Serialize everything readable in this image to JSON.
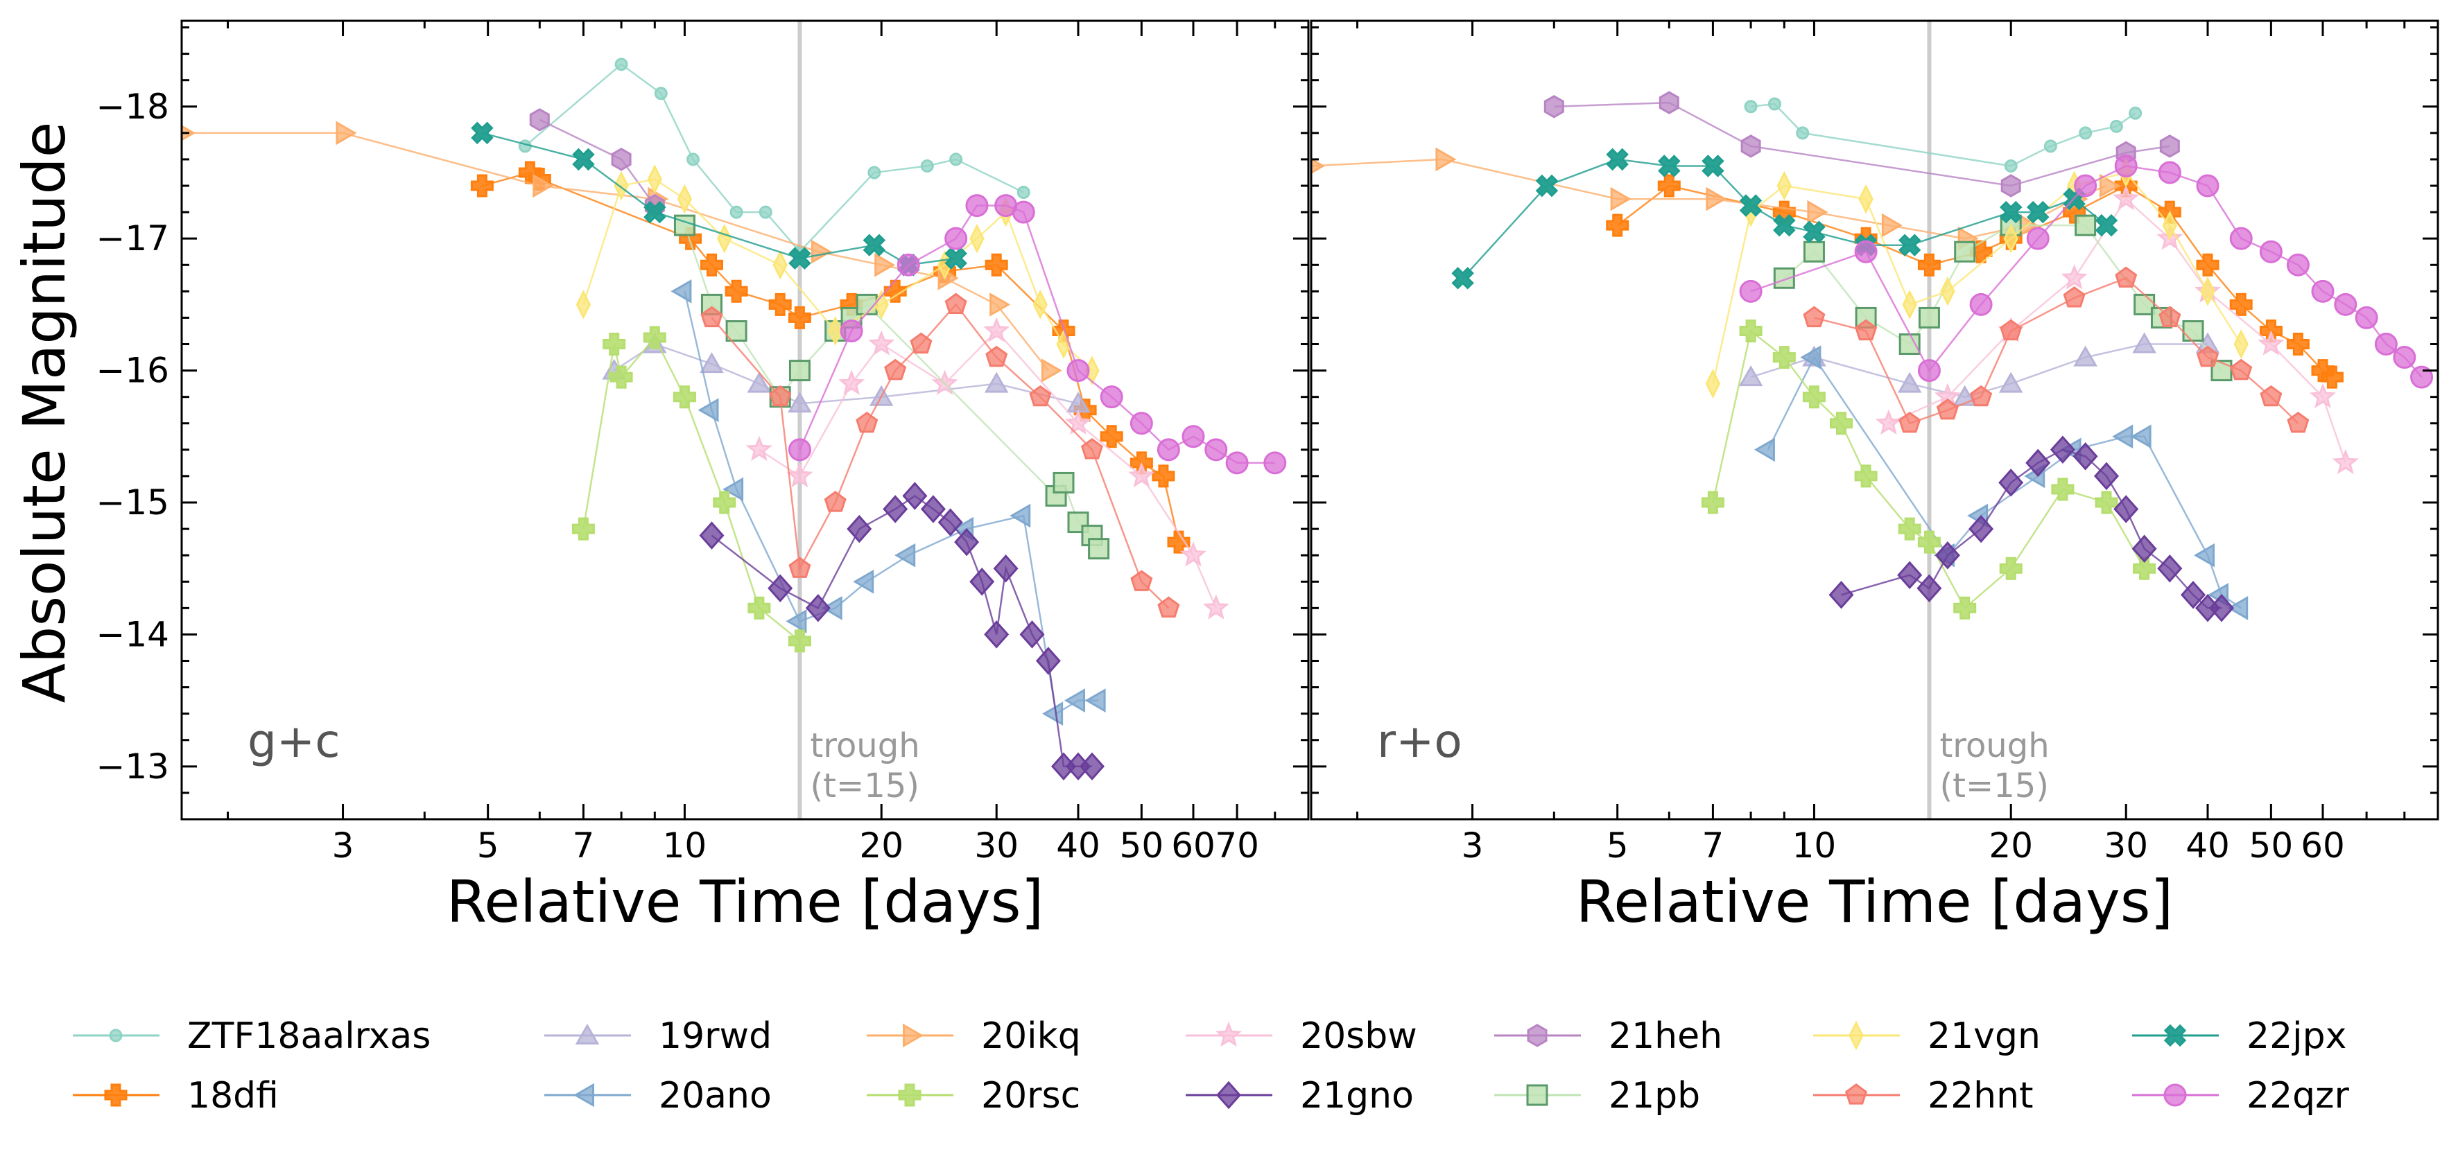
{
  "chart_data": {
    "type": "scatter",
    "figure_ylabel": "Absolute Magnitude",
    "xscale": "log",
    "y_inverted": true,
    "ylim": [
      -12.6,
      -18.65
    ],
    "yticks": [
      -18,
      -17,
      -16,
      -15,
      -14,
      -13
    ],
    "grid": false,
    "legend_placement": "bottom, 7 columns",
    "trough": {
      "x": 15,
      "label_line1": "trough",
      "label_line2": "(t=15)"
    },
    "panels": [
      {
        "label": "g+c",
        "xlabel": "Relative Time [days]",
        "xlim": [
          1.7,
          90
        ],
        "xticks": [
          3,
          5,
          7,
          10,
          20,
          30,
          40,
          50,
          60,
          70
        ],
        "series": [
          {
            "name": "ZTF18aalrxas",
            "x": [
              5.7,
              8.0,
              9.2,
              10.3,
              12.0,
              13.3,
              15.0,
              19.5,
              23.5,
              26.0,
              33.0
            ],
            "y": [
              -17.7,
              -18.32,
              -18.1,
              -17.6,
              -17.2,
              -17.2,
              -16.9,
              -17.5,
              -17.55,
              -17.6,
              -17.35
            ]
          },
          {
            "name": "18dfi",
            "x": [
              4.9,
              5.8,
              6.0,
              10.2,
              11.0,
              12.0,
              14.0,
              15.0,
              18.0,
              21.0,
              25.0,
              30.0,
              38.0,
              41.0,
              45.0,
              50.0,
              54.0,
              57.0
            ],
            "y": [
              -17.4,
              -17.5,
              -17.45,
              -17.0,
              -16.8,
              -16.6,
              -16.5,
              -16.4,
              -16.5,
              -16.6,
              -16.75,
              -16.8,
              -16.3,
              -15.7,
              -15.5,
              -15.3,
              -15.2,
              -14.7
            ]
          },
          {
            "name": "19rwd",
            "x": [
              7.8,
              9.0,
              11.0,
              13.0,
              15.0,
              20.0,
              30.0,
              40.0
            ],
            "y": [
              -16.0,
              -16.2,
              -16.05,
              -15.9,
              -15.75,
              -15.8,
              -15.9,
              -15.75
            ]
          },
          {
            "name": "20ano",
            "x": [
              10.0,
              11.0,
              12.0,
              15.0,
              17.0,
              19.0,
              22.0,
              27.0,
              33.0,
              37.0,
              40.0,
              43.0
            ],
            "y": [
              -16.6,
              -15.7,
              -15.1,
              -14.1,
              -14.2,
              -14.4,
              -14.6,
              -14.8,
              -14.9,
              -13.4,
              -13.5,
              -13.5
            ]
          },
          {
            "name": "20ikq",
            "x": [
              1.7,
              3.0,
              6.0,
              9.0,
              16.0,
              20.0,
              25.0,
              30.0,
              36.0
            ],
            "y": [
              -17.8,
              -17.8,
              -17.4,
              -17.3,
              -16.9,
              -16.8,
              -16.7,
              -16.5,
              -16.0
            ]
          },
          {
            "name": "20rsc",
            "x": [
              7.0,
              7.8,
              8.0,
              9.0,
              10.0,
              11.5,
              13.0,
              15.0
            ],
            "y": [
              -14.8,
              -16.2,
              -15.95,
              -16.25,
              -15.8,
              -15.0,
              -14.2,
              -13.95
            ]
          },
          {
            "name": "20sbw",
            "x": [
              13.0,
              15.0,
              18.0,
              20.0,
              25.0,
              30.0,
              40.0,
              50.0,
              60.0,
              65.0
            ],
            "y": [
              -15.4,
              -15.2,
              -15.9,
              -16.2,
              -15.9,
              -16.3,
              -15.6,
              -15.2,
              -14.6,
              -14.2
            ]
          },
          {
            "name": "21gno",
            "x": [
              11.0,
              14.0,
              16.0,
              18.5,
              21.0,
              22.5,
              24.0,
              25.5,
              27.0,
              28.5,
              30.0,
              31.0,
              34.0,
              36.0,
              38.0,
              40.0,
              42.0
            ],
            "y": [
              -14.75,
              -14.35,
              -14.2,
              -14.8,
              -14.95,
              -15.05,
              -14.95,
              -14.85,
              -14.7,
              -14.4,
              -14.0,
              -14.5,
              -14.0,
              -13.8,
              -13.0,
              -13.0,
              -13.0
            ]
          },
          {
            "name": "21heh",
            "x": [
              6.0,
              8.0,
              9.0
            ],
            "y": [
              -17.9,
              -17.6,
              -17.25
            ]
          },
          {
            "name": "21pb",
            "x": [
              10.0,
              11.0,
              12.0,
              14.0,
              15.0,
              17.0,
              18.0,
              19.0,
              37.0,
              38.0,
              40.0,
              42.0,
              43.0
            ],
            "y": [
              -17.1,
              -16.5,
              -16.3,
              -15.8,
              -16.0,
              -16.3,
              -16.4,
              -16.5,
              -15.05,
              -15.15,
              -14.85,
              -14.75,
              -14.65
            ]
          },
          {
            "name": "21vgn",
            "x": [
              7.0,
              8.0,
              9.0,
              10.0,
              11.5,
              14.0,
              17.0,
              20.0,
              25.0,
              28.0,
              31.0,
              35.0,
              38.0,
              42.0
            ],
            "y": [
              -16.5,
              -17.4,
              -17.45,
              -17.3,
              -17.0,
              -16.8,
              -16.3,
              -16.5,
              -16.8,
              -17.0,
              -17.2,
              -16.5,
              -16.2,
              -16.0
            ]
          },
          {
            "name": "22hnt",
            "x": [
              11.0,
              14.0,
              15.0,
              17.0,
              19.0,
              21.0,
              23.0,
              26.0,
              30.0,
              35.0,
              42.0,
              50.0,
              55.0
            ],
            "y": [
              -16.4,
              -15.8,
              -14.5,
              -15.0,
              -15.6,
              -16.0,
              -16.2,
              -16.5,
              -16.1,
              -15.8,
              -15.4,
              -14.4,
              -14.2
            ]
          },
          {
            "name": "22jpx",
            "x": [
              4.9,
              7.0,
              9.0,
              15.0,
              19.5,
              22.0,
              26.0
            ],
            "y": [
              -17.8,
              -17.6,
              -17.2,
              -16.85,
              -16.95,
              -16.8,
              -16.85
            ]
          },
          {
            "name": "22qzr",
            "x": [
              15.0,
              18.0,
              22.0,
              26.0,
              28.0,
              31.0,
              33.0,
              40.0,
              45.0,
              50.0,
              55.0,
              60.0,
              65.0,
              70.0,
              80.0
            ],
            "y": [
              -15.4,
              -16.3,
              -16.8,
              -17.0,
              -17.25,
              -17.25,
              -17.2,
              -16.0,
              -15.8,
              -15.6,
              -15.4,
              -15.5,
              -15.4,
              -15.3,
              -15.3
            ]
          }
        ]
      },
      {
        "label": "r+o",
        "xlabel": "Relative Time [days]",
        "xlim": [
          1.7,
          90
        ],
        "xticks": [
          3,
          5,
          7,
          10,
          20,
          30,
          40,
          50,
          60
        ],
        "series": [
          {
            "name": "ZTF18aalrxas",
            "x": [
              8.0,
              8.7,
              9.6,
              20.0,
              23.0,
              26.0,
              29.0,
              31.0
            ],
            "y": [
              -18.0,
              -18.02,
              -17.8,
              -17.55,
              -17.7,
              -17.8,
              -17.85,
              -17.95
            ]
          },
          {
            "name": "18dfi",
            "x": [
              5.0,
              6.0,
              9.0,
              12.0,
              15.0,
              18.0,
              20.0,
              25.0,
              30.0,
              35.0,
              40.0,
              45.0,
              50.0,
              55.0,
              60.0,
              62.0
            ],
            "y": [
              -17.1,
              -17.4,
              -17.2,
              -17.0,
              -16.8,
              -16.9,
              -17.0,
              -17.2,
              -17.4,
              -17.2,
              -16.8,
              -16.5,
              -16.3,
              -16.2,
              -16.0,
              -15.95
            ]
          },
          {
            "name": "19rwd",
            "x": [
              8.0,
              10.0,
              14.0,
              17.0,
              20.0,
              26.0,
              32.0,
              40.0
            ],
            "y": [
              -15.95,
              -16.1,
              -15.9,
              -15.8,
              -15.9,
              -16.1,
              -16.2,
              -16.2
            ]
          },
          {
            "name": "20ano",
            "x": [
              8.5,
              10.0,
              16.0,
              18.0,
              22.0,
              25.0,
              30.0,
              32.0,
              40.0,
              42.0,
              45.0
            ],
            "y": [
              -15.4,
              -16.1,
              -14.6,
              -14.9,
              -15.2,
              -15.4,
              -15.5,
              -15.5,
              -14.6,
              -14.3,
              -14.2
            ]
          },
          {
            "name": "20ikq",
            "x": [
              1.7,
              2.7,
              5.0,
              7.0,
              10.0,
              13.0,
              17.0,
              21.0,
              25.0,
              28.0
            ],
            "y": [
              -17.55,
              -17.6,
              -17.3,
              -17.3,
              -17.2,
              -17.1,
              -17.0,
              -17.1,
              -17.3,
              -17.4
            ]
          },
          {
            "name": "20rsc",
            "x": [
              7.0,
              8.0,
              9.0,
              10.0,
              11.0,
              12.0,
              14.0,
              15.0,
              17.0,
              20.0,
              24.0,
              28.0,
              32.0
            ],
            "y": [
              -15.0,
              -16.3,
              -16.1,
              -15.8,
              -15.6,
              -15.2,
              -14.8,
              -14.7,
              -14.2,
              -14.5,
              -15.1,
              -15.0,
              -14.5
            ]
          },
          {
            "name": "20sbw",
            "x": [
              13.0,
              16.0,
              20.0,
              25.0,
              30.0,
              35.0,
              40.0,
              50.0,
              60.0,
              65.0
            ],
            "y": [
              -15.6,
              -15.8,
              -16.3,
              -16.7,
              -17.3,
              -17.0,
              -16.6,
              -16.2,
              -15.8,
              -15.3
            ]
          },
          {
            "name": "21gno",
            "x": [
              11.0,
              14.0,
              15.0,
              16.0,
              18.0,
              20.0,
              22.0,
              24.0,
              26.0,
              28.0,
              30.0,
              32.0,
              35.0,
              38.0,
              40.0,
              42.0
            ],
            "y": [
              -14.3,
              -14.45,
              -14.35,
              -14.6,
              -14.8,
              -15.15,
              -15.3,
              -15.4,
              -15.35,
              -15.2,
              -14.95,
              -14.65,
              -14.5,
              -14.3,
              -14.2,
              -14.2
            ]
          },
          {
            "name": "21heh",
            "x": [
              4.0,
              6.0,
              8.0,
              20.0,
              30.0,
              35.0
            ],
            "y": [
              -18.0,
              -18.03,
              -17.7,
              -17.4,
              -17.65,
              -17.7
            ]
          },
          {
            "name": "21pb",
            "x": [
              9.0,
              10.0,
              12.0,
              14.0,
              15.0,
              17.0,
              20.0,
              26.0,
              32.0,
              34.0,
              38.0,
              42.0
            ],
            "y": [
              -16.7,
              -16.9,
              -16.4,
              -16.2,
              -16.4,
              -16.9,
              -17.1,
              -17.1,
              -16.5,
              -16.4,
              -16.3,
              -16.0
            ]
          },
          {
            "name": "21vgn",
            "x": [
              7.0,
              8.0,
              9.0,
              12.0,
              14.0,
              16.0,
              20.0,
              25.0,
              30.0,
              35.0,
              40.0,
              45.0
            ],
            "y": [
              -15.9,
              -17.2,
              -17.4,
              -17.3,
              -16.5,
              -16.6,
              -17.0,
              -17.4,
              -17.5,
              -17.1,
              -16.6,
              -16.2
            ]
          },
          {
            "name": "22hnt",
            "x": [
              10.0,
              12.0,
              14.0,
              16.0,
              18.0,
              20.0,
              25.0,
              30.0,
              35.0,
              40.0,
              45.0,
              50.0,
              55.0
            ],
            "y": [
              -16.4,
              -16.3,
              -15.6,
              -15.7,
              -15.8,
              -16.3,
              -16.55,
              -16.7,
              -16.4,
              -16.1,
              -16.0,
              -15.8,
              -15.6
            ]
          },
          {
            "name": "22jpx",
            "x": [
              2.9,
              3.9,
              5.0,
              6.0,
              7.0,
              8.0,
              9.0,
              10.0,
              12.0,
              14.0,
              20.0,
              22.0,
              25.0,
              28.0
            ],
            "y": [
              -16.7,
              -17.4,
              -17.6,
              -17.55,
              -17.55,
              -17.25,
              -17.1,
              -17.05,
              -16.95,
              -16.95,
              -17.2,
              -17.2,
              -17.3,
              -17.1
            ]
          },
          {
            "name": "22qzr",
            "x": [
              8.0,
              12.0,
              15.0,
              18.0,
              22.0,
              26.0,
              30.0,
              35.0,
              40.0,
              45.0,
              50.0,
              55.0,
              60.0,
              65.0,
              70.0,
              75.0,
              80.0,
              85.0
            ],
            "y": [
              -16.6,
              -16.9,
              -16.0,
              -16.5,
              -17.0,
              -17.4,
              -17.55,
              -17.5,
              -17.4,
              -17.0,
              -16.9,
              -16.8,
              -16.6,
              -16.5,
              -16.4,
              -16.2,
              -16.1,
              -15.95
            ]
          }
        ]
      }
    ],
    "legend": [
      {
        "name": "ZTF18aalrxas",
        "marker": "circle-small",
        "color": "#8fd3c4"
      },
      {
        "name": "18dfi",
        "marker": "plus",
        "color": "#ff7f0e"
      },
      {
        "name": "19rwd",
        "marker": "triangle-up",
        "color": "#b7b3d8"
      },
      {
        "name": "20ano",
        "marker": "triangle-left",
        "color": "#7fa8cf"
      },
      {
        "name": "20ikq",
        "marker": "triangle-right",
        "color": "#fdae6b"
      },
      {
        "name": "20rsc",
        "marker": "plus",
        "color": "#b5de6f"
      },
      {
        "name": "20sbw",
        "marker": "star",
        "color": "#f9c1d9"
      },
      {
        "name": "21gno",
        "marker": "diamond",
        "color": "#6a3d9a"
      },
      {
        "name": "21heh",
        "marker": "hexagon",
        "color": "#b884c4"
      },
      {
        "name": "21pb",
        "marker": "square",
        "color": "#bfe3b4"
      },
      {
        "name": "21vgn",
        "marker": "thin-diamond",
        "color": "#fbe674"
      },
      {
        "name": "22hnt",
        "marker": "pentagon",
        "color": "#f67c6e"
      },
      {
        "name": "22jpx",
        "marker": "x",
        "color": "#1f9e8f"
      },
      {
        "name": "22qzr",
        "marker": "circle",
        "color": "#d96fd6"
      }
    ]
  }
}
